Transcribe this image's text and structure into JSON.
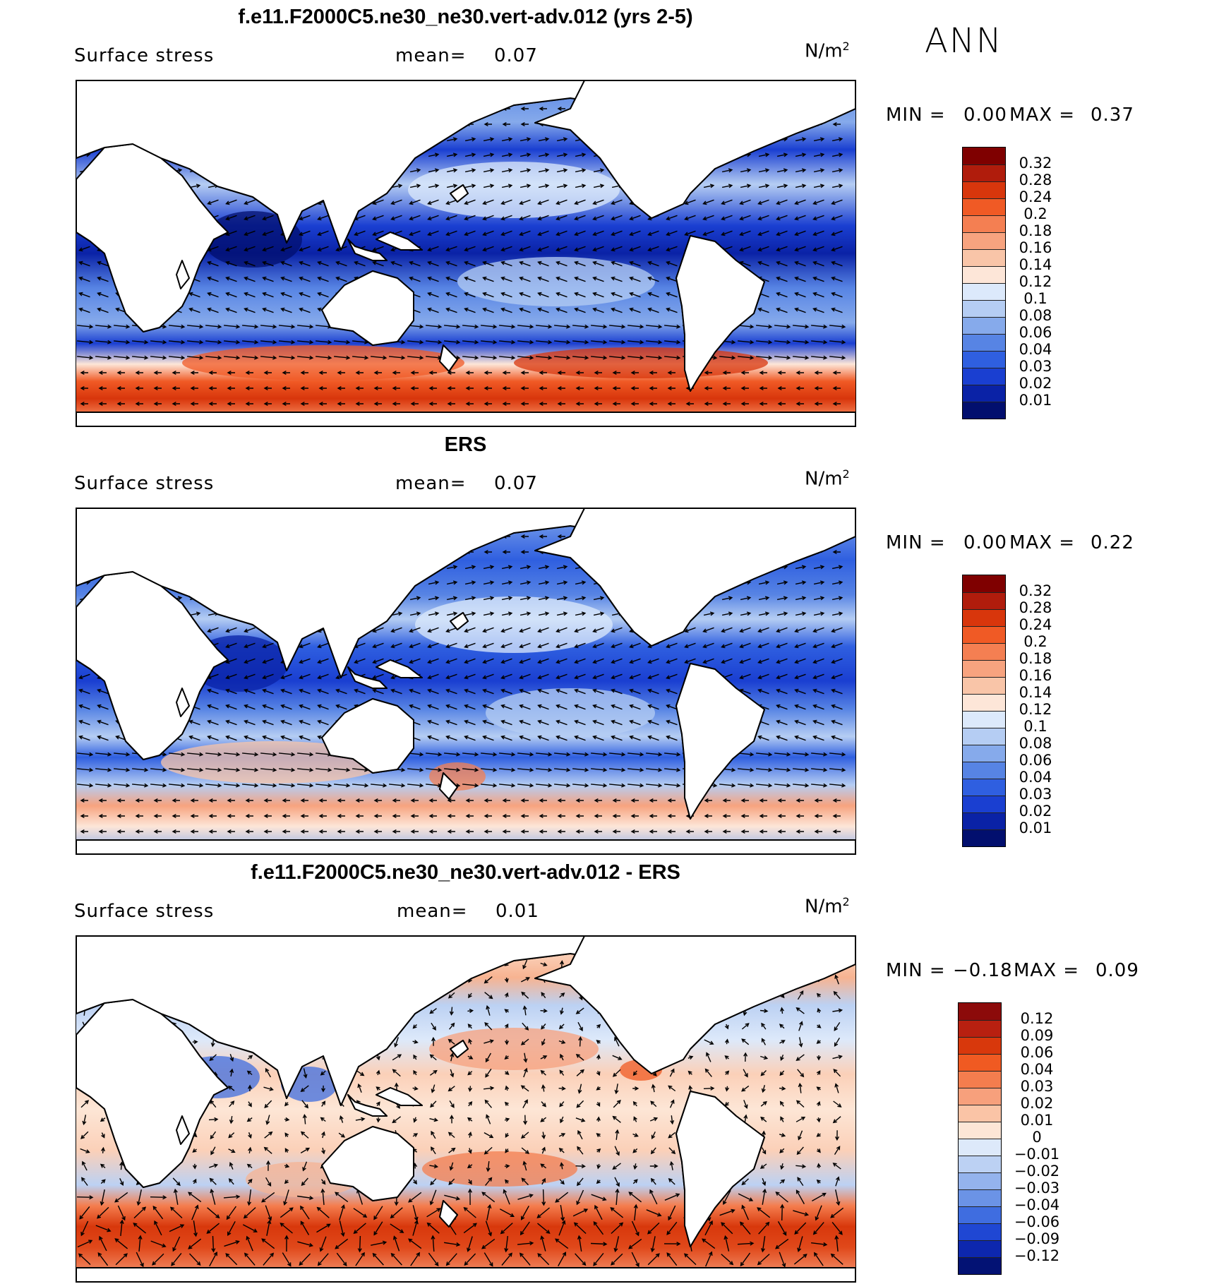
{
  "season": "ANN",
  "panels": [
    {
      "title": "f.e11.F2000C5.ne30_ne30.vert-adv.012 (yrs 2-5)",
      "variable": "Surface stress",
      "mean_label": "mean=",
      "mean_value": "0.07",
      "units_base": "N/m",
      "units_exp": "2",
      "min_label": "MIN =",
      "min_value": "0.00",
      "max_label": "MAX =",
      "max_value": "0.37",
      "kind": "model",
      "colorbar": {
        "labels": [
          "0.32",
          "0.28",
          "0.24",
          "0.2",
          "0.18",
          "0.16",
          "0.14",
          "0.12",
          "0.1",
          "0.08",
          "0.06",
          "0.04",
          "0.03",
          "0.02",
          "0.01"
        ],
        "colors": [
          "#7f0000",
          "#b01c0c",
          "#d8360c",
          "#f05a25",
          "#f47f52",
          "#f7a37f",
          "#f9c5a8",
          "#fde6d8",
          "#dce9fb",
          "#b5cdf3",
          "#86aaeb",
          "#5784e4",
          "#2f5fe0",
          "#1a3fd1",
          "#0a22a6",
          "#020f6e"
        ]
      }
    },
    {
      "title": "ERS",
      "variable": "Surface stress",
      "mean_label": "mean=",
      "mean_value": "0.07",
      "units_base": "N/m",
      "units_exp": "2",
      "min_label": "MIN =",
      "min_value": "0.00",
      "max_label": "MAX =",
      "max_value": "0.22",
      "kind": "obs",
      "colorbar": {
        "labels": [
          "0.32",
          "0.28",
          "0.24",
          "0.2",
          "0.18",
          "0.16",
          "0.14",
          "0.12",
          "0.1",
          "0.08",
          "0.06",
          "0.04",
          "0.03",
          "0.02",
          "0.01"
        ],
        "colors": [
          "#7f0000",
          "#b01c0c",
          "#d8360c",
          "#f05a25",
          "#f47f52",
          "#f7a37f",
          "#f9c5a8",
          "#fde6d8",
          "#dce9fb",
          "#b5cdf3",
          "#86aaeb",
          "#5784e4",
          "#2f5fe0",
          "#1a3fd1",
          "#0a22a6",
          "#020f6e"
        ]
      }
    },
    {
      "title": "f.e11.F2000C5.ne30_ne30.vert-adv.012 - ERS",
      "variable": "Surface stress",
      "mean_label": "mean=",
      "mean_value": "0.01",
      "units_base": "N/m",
      "units_exp": "2",
      "min_label": "MIN =",
      "min_value": "−0.18",
      "max_label": "MAX =",
      "max_value": "0.09",
      "kind": "diff",
      "colorbar": {
        "labels": [
          "0.12",
          "0.09",
          "0.06",
          "0.04",
          "0.03",
          "0.02",
          "0.01",
          "0",
          "−0.01",
          "−0.02",
          "−0.03",
          "−0.04",
          "−0.06",
          "−0.09",
          "−0.12"
        ],
        "colors": [
          "#8c0a0a",
          "#b82010",
          "#d8380c",
          "#f05a22",
          "#f47d4e",
          "#f7a07c",
          "#fac4a6",
          "#fde6d6",
          "#dde9fa",
          "#bcd1f3",
          "#94b3ed",
          "#6b93e6",
          "#3f6de0",
          "#1f47d3",
          "#0d27ae",
          "#031274"
        ]
      }
    }
  ]
}
